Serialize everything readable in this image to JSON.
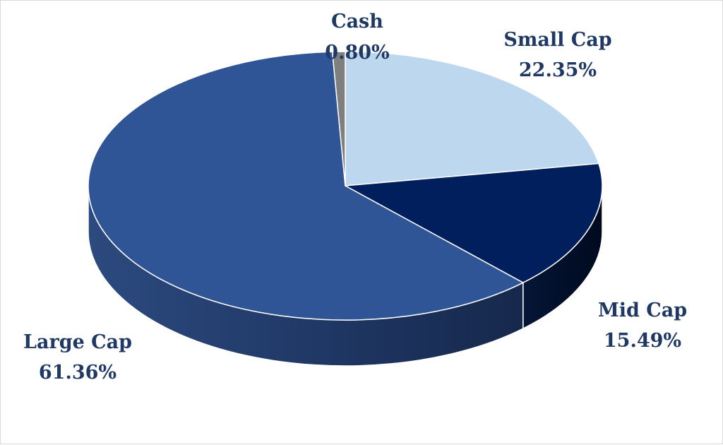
{
  "chart_data": {
    "type": "pie",
    "style": "3d",
    "title": "",
    "slices": [
      {
        "name": "Small Cap",
        "value": 22.35,
        "label": "22.35%",
        "color": "#bdd7ee"
      },
      {
        "name": "Mid Cap",
        "value": 15.49,
        "label": "15.49%",
        "color": "#001f5c"
      },
      {
        "name": "Large Cap",
        "value": 61.36,
        "label": "61.36%",
        "color": "#2f5597"
      },
      {
        "name": "Cash",
        "value": 0.8,
        "label": "0.80%",
        "color": "#7f7f7f"
      }
    ]
  }
}
